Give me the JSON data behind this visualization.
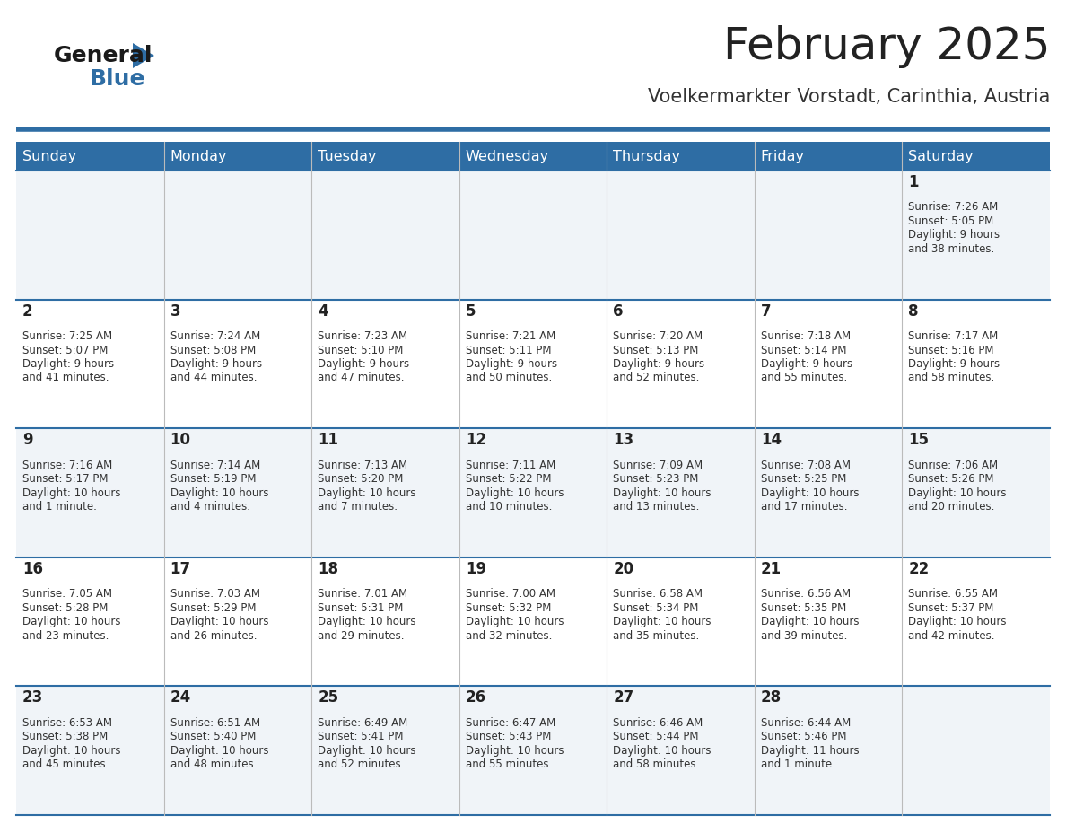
{
  "title": "February 2025",
  "subtitle": "Voelkermarkter Vorstadt, Carinthia, Austria",
  "header_bg": "#2E6DA4",
  "header_text": "#FFFFFF",
  "day_names": [
    "Sunday",
    "Monday",
    "Tuesday",
    "Wednesday",
    "Thursday",
    "Friday",
    "Saturday"
  ],
  "row_bg_even": "#F0F4F8",
  "row_bg_odd": "#FFFFFF",
  "cell_border_color": "#2E6DA4",
  "vert_border_color": "#BBBBBB",
  "date_color": "#222222",
  "info_color": "#333333",
  "title_color": "#222222",
  "subtitle_color": "#333333",
  "logo_general_color": "#1A1A1A",
  "logo_blue_color": "#2E6DA4",
  "top_line_color": "#2E6DA4",
  "days": [
    {
      "day": 1,
      "col": 6,
      "row": 0,
      "sunrise": "7:26 AM",
      "sunset": "5:05 PM",
      "daylight": "9 hours and 38 minutes."
    },
    {
      "day": 2,
      "col": 0,
      "row": 1,
      "sunrise": "7:25 AM",
      "sunset": "5:07 PM",
      "daylight": "9 hours and 41 minutes."
    },
    {
      "day": 3,
      "col": 1,
      "row": 1,
      "sunrise": "7:24 AM",
      "sunset": "5:08 PM",
      "daylight": "9 hours and 44 minutes."
    },
    {
      "day": 4,
      "col": 2,
      "row": 1,
      "sunrise": "7:23 AM",
      "sunset": "5:10 PM",
      "daylight": "9 hours and 47 minutes."
    },
    {
      "day": 5,
      "col": 3,
      "row": 1,
      "sunrise": "7:21 AM",
      "sunset": "5:11 PM",
      "daylight": "9 hours and 50 minutes."
    },
    {
      "day": 6,
      "col": 4,
      "row": 1,
      "sunrise": "7:20 AM",
      "sunset": "5:13 PM",
      "daylight": "9 hours and 52 minutes."
    },
    {
      "day": 7,
      "col": 5,
      "row": 1,
      "sunrise": "7:18 AM",
      "sunset": "5:14 PM",
      "daylight": "9 hours and 55 minutes."
    },
    {
      "day": 8,
      "col": 6,
      "row": 1,
      "sunrise": "7:17 AM",
      "sunset": "5:16 PM",
      "daylight": "9 hours and 58 minutes."
    },
    {
      "day": 9,
      "col": 0,
      "row": 2,
      "sunrise": "7:16 AM",
      "sunset": "5:17 PM",
      "daylight": "10 hours and 1 minute."
    },
    {
      "day": 10,
      "col": 1,
      "row": 2,
      "sunrise": "7:14 AM",
      "sunset": "5:19 PM",
      "daylight": "10 hours and 4 minutes."
    },
    {
      "day": 11,
      "col": 2,
      "row": 2,
      "sunrise": "7:13 AM",
      "sunset": "5:20 PM",
      "daylight": "10 hours and 7 minutes."
    },
    {
      "day": 12,
      "col": 3,
      "row": 2,
      "sunrise": "7:11 AM",
      "sunset": "5:22 PM",
      "daylight": "10 hours and 10 minutes."
    },
    {
      "day": 13,
      "col": 4,
      "row": 2,
      "sunrise": "7:09 AM",
      "sunset": "5:23 PM",
      "daylight": "10 hours and 13 minutes."
    },
    {
      "day": 14,
      "col": 5,
      "row": 2,
      "sunrise": "7:08 AM",
      "sunset": "5:25 PM",
      "daylight": "10 hours and 17 minutes."
    },
    {
      "day": 15,
      "col": 6,
      "row": 2,
      "sunrise": "7:06 AM",
      "sunset": "5:26 PM",
      "daylight": "10 hours and 20 minutes."
    },
    {
      "day": 16,
      "col": 0,
      "row": 3,
      "sunrise": "7:05 AM",
      "sunset": "5:28 PM",
      "daylight": "10 hours and 23 minutes."
    },
    {
      "day": 17,
      "col": 1,
      "row": 3,
      "sunrise": "7:03 AM",
      "sunset": "5:29 PM",
      "daylight": "10 hours and 26 minutes."
    },
    {
      "day": 18,
      "col": 2,
      "row": 3,
      "sunrise": "7:01 AM",
      "sunset": "5:31 PM",
      "daylight": "10 hours and 29 minutes."
    },
    {
      "day": 19,
      "col": 3,
      "row": 3,
      "sunrise": "7:00 AM",
      "sunset": "5:32 PM",
      "daylight": "10 hours and 32 minutes."
    },
    {
      "day": 20,
      "col": 4,
      "row": 3,
      "sunrise": "6:58 AM",
      "sunset": "5:34 PM",
      "daylight": "10 hours and 35 minutes."
    },
    {
      "day": 21,
      "col": 5,
      "row": 3,
      "sunrise": "6:56 AM",
      "sunset": "5:35 PM",
      "daylight": "10 hours and 39 minutes."
    },
    {
      "day": 22,
      "col": 6,
      "row": 3,
      "sunrise": "6:55 AM",
      "sunset": "5:37 PM",
      "daylight": "10 hours and 42 minutes."
    },
    {
      "day": 23,
      "col": 0,
      "row": 4,
      "sunrise": "6:53 AM",
      "sunset": "5:38 PM",
      "daylight": "10 hours and 45 minutes."
    },
    {
      "day": 24,
      "col": 1,
      "row": 4,
      "sunrise": "6:51 AM",
      "sunset": "5:40 PM",
      "daylight": "10 hours and 48 minutes."
    },
    {
      "day": 25,
      "col": 2,
      "row": 4,
      "sunrise": "6:49 AM",
      "sunset": "5:41 PM",
      "daylight": "10 hours and 52 minutes."
    },
    {
      "day": 26,
      "col": 3,
      "row": 4,
      "sunrise": "6:47 AM",
      "sunset": "5:43 PM",
      "daylight": "10 hours and 55 minutes."
    },
    {
      "day": 27,
      "col": 4,
      "row": 4,
      "sunrise": "6:46 AM",
      "sunset": "5:44 PM",
      "daylight": "10 hours and 58 minutes."
    },
    {
      "day": 28,
      "col": 5,
      "row": 4,
      "sunrise": "6:44 AM",
      "sunset": "5:46 PM",
      "daylight": "11 hours and 1 minute."
    }
  ]
}
